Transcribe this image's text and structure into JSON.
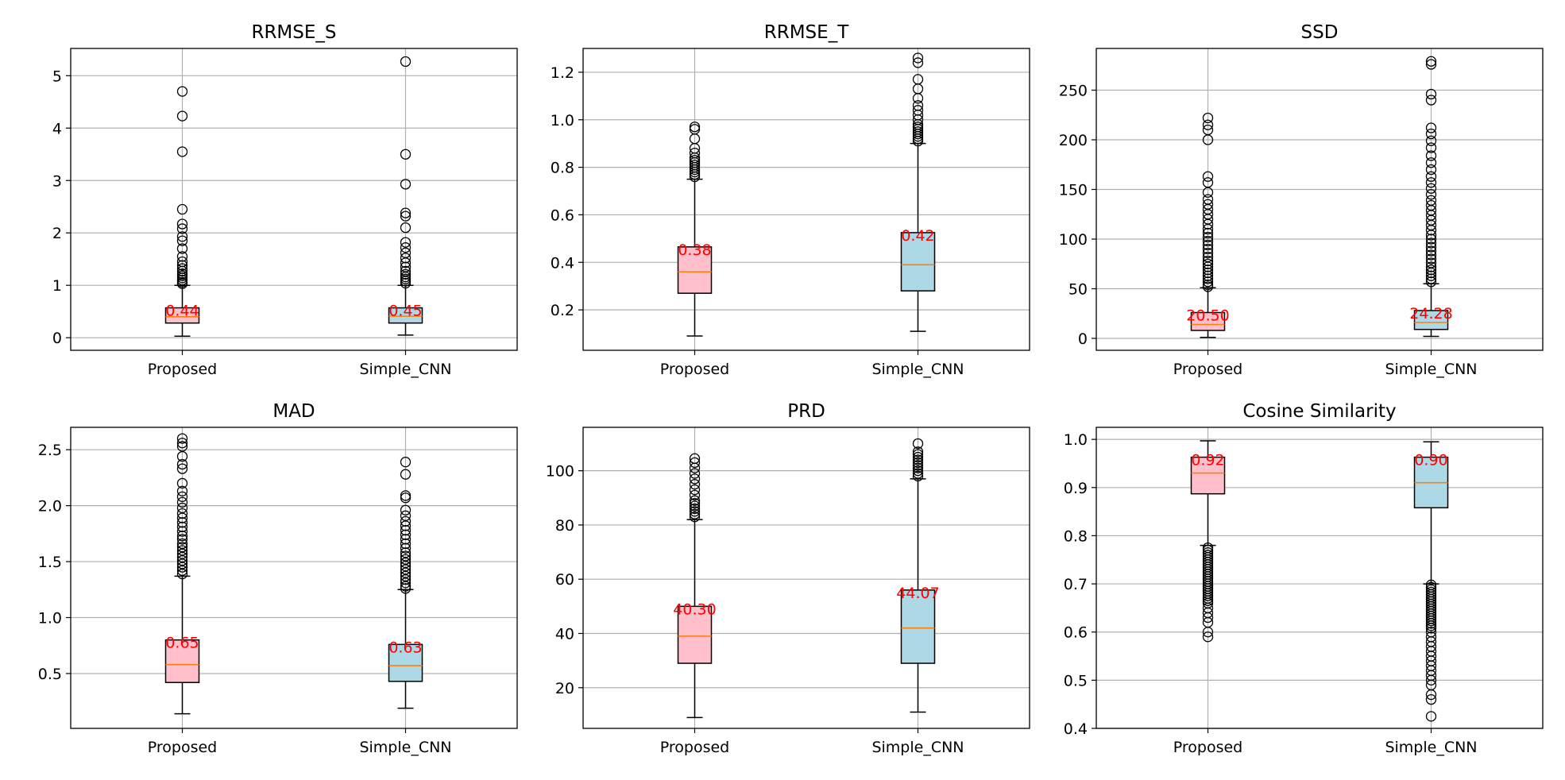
{
  "chart_data": [
    {
      "type": "box",
      "title": "RRMSE_S",
      "categories": [
        "Proposed",
        "Simple_CNN"
      ],
      "ylim": [
        -0.24,
        5.52
      ],
      "yticks": [
        0,
        1,
        2,
        3,
        4,
        5
      ],
      "ytick_labels": [
        "0",
        "1",
        "2",
        "3",
        "4",
        "5"
      ],
      "grid": true,
      "boxes": [
        {
          "name": "Proposed",
          "color": "#ffc0cb",
          "whislo": 0.03,
          "q1": 0.28,
          "med": 0.4,
          "q3": 0.57,
          "whishi": 1.0,
          "mean_label": "0.44",
          "fliers": [
            4.7,
            4.23,
            3.55,
            2.45,
            2.17,
            2.08,
            1.93,
            1.85,
            1.7,
            1.55,
            1.45,
            1.38,
            1.32,
            1.27,
            1.22,
            1.18,
            1.14,
            1.1,
            1.06,
            1.03
          ]
        },
        {
          "name": "Simple_CNN",
          "color": "#add8e6",
          "whislo": 0.05,
          "q1": 0.28,
          "med": 0.41,
          "q3": 0.57,
          "whishi": 1.0,
          "mean_label": "0.45",
          "fliers": [
            5.27,
            3.5,
            2.93,
            2.38,
            2.32,
            2.1,
            1.82,
            1.72,
            1.62,
            1.52,
            1.43,
            1.35,
            1.27,
            1.21,
            1.16,
            1.12,
            1.08,
            1.04
          ]
        }
      ]
    },
    {
      "type": "box",
      "title": "RRMSE_T",
      "categories": [
        "Proposed",
        "Simple_CNN"
      ],
      "ylim": [
        0.03,
        1.3
      ],
      "yticks": [
        0.2,
        0.4,
        0.6,
        0.8,
        1.0,
        1.2
      ],
      "ytick_labels": [
        "0.2",
        "0.4",
        "0.6",
        "0.8",
        "1.0",
        "1.2"
      ],
      "grid": true,
      "boxes": [
        {
          "name": "Proposed",
          "color": "#ffc0cb",
          "whislo": 0.09,
          "q1": 0.27,
          "med": 0.36,
          "q3": 0.465,
          "whishi": 0.75,
          "mean_label": "0.38",
          "fliers": [
            0.97,
            0.96,
            0.92,
            0.88,
            0.86,
            0.84,
            0.83,
            0.82,
            0.81,
            0.8,
            0.79,
            0.78,
            0.77,
            0.76
          ]
        },
        {
          "name": "Simple_CNN",
          "color": "#add8e6",
          "whislo": 0.11,
          "q1": 0.28,
          "med": 0.39,
          "q3": 0.525,
          "whishi": 0.9,
          "mean_label": "0.42",
          "fliers": [
            1.26,
            1.24,
            1.17,
            1.13,
            1.09,
            1.06,
            1.04,
            1.02,
            1.0,
            0.98,
            0.97,
            0.96,
            0.95,
            0.94,
            0.93,
            0.92,
            0.91
          ]
        }
      ]
    },
    {
      "type": "box",
      "title": "SSD",
      "categories": [
        "Proposed",
        "Simple_CNN"
      ],
      "ylim": [
        -12,
        292
      ],
      "yticks": [
        0,
        50,
        100,
        150,
        200,
        250
      ],
      "ytick_labels": [
        "0",
        "50",
        "100",
        "150",
        "200",
        "250"
      ],
      "grid": true,
      "boxes": [
        {
          "name": "Proposed",
          "color": "#ffc0cb",
          "whislo": 1,
          "q1": 8,
          "med": 14,
          "q3": 26,
          "whishi": 51,
          "mean_label": "20.50",
          "fliers": [
            222,
            215,
            210,
            200,
            163,
            157,
            147,
            140,
            135,
            130,
            125,
            120,
            115,
            110,
            106,
            102,
            98,
            94,
            90,
            86,
            82,
            78,
            75,
            72,
            69,
            66,
            63,
            60,
            57,
            54,
            52
          ]
        },
        {
          "name": "Simple_CNN",
          "color": "#add8e6",
          "whislo": 2,
          "q1": 9,
          "med": 16,
          "q3": 28,
          "whishi": 55,
          "mean_label": "24.28",
          "fliers": [
            279,
            276,
            246,
            240,
            212,
            206,
            199,
            192,
            184,
            177,
            170,
            163,
            157,
            151,
            145,
            139,
            134,
            129,
            124,
            119,
            114,
            109,
            104,
            100,
            96,
            92,
            88,
            84,
            80,
            76,
            72,
            69,
            66,
            63,
            60,
            57
          ]
        }
      ]
    },
    {
      "type": "box",
      "title": "MAD",
      "categories": [
        "Proposed",
        "Simple_CNN"
      ],
      "ylim": [
        0.01,
        2.7
      ],
      "yticks": [
        0.5,
        1.0,
        1.5,
        2.0,
        2.5
      ],
      "ytick_labels": [
        "0.5",
        "1.0",
        "1.5",
        "2.0",
        "2.5"
      ],
      "grid": true,
      "boxes": [
        {
          "name": "Proposed",
          "color": "#ffc0cb",
          "whislo": 0.14,
          "q1": 0.42,
          "med": 0.58,
          "q3": 0.8,
          "whishi": 1.37,
          "mean_label": "0.65",
          "fliers": [
            2.6,
            2.56,
            2.53,
            2.44,
            2.37,
            2.33,
            2.2,
            2.13,
            2.08,
            2.03,
            1.98,
            1.93,
            1.89,
            1.85,
            1.81,
            1.77,
            1.73,
            1.7,
            1.66,
            1.63,
            1.6,
            1.57,
            1.54,
            1.51,
            1.48,
            1.45,
            1.42,
            1.39
          ]
        },
        {
          "name": "Simple_CNN",
          "color": "#add8e6",
          "whislo": 0.19,
          "q1": 0.43,
          "med": 0.57,
          "q3": 0.76,
          "whishi": 1.25,
          "mean_label": "0.63",
          "fliers": [
            2.39,
            2.28,
            2.09,
            2.07,
            1.96,
            1.91,
            1.86,
            1.82,
            1.78,
            1.74,
            1.7,
            1.66,
            1.62,
            1.58,
            1.55,
            1.52,
            1.49,
            1.46,
            1.43,
            1.4,
            1.37,
            1.34,
            1.31,
            1.28,
            1.26
          ]
        }
      ]
    },
    {
      "type": "box",
      "title": "PRD",
      "categories": [
        "Proposed",
        "Simple_CNN"
      ],
      "ylim": [
        5,
        116
      ],
      "yticks": [
        20,
        40,
        60,
        80,
        100
      ],
      "ytick_labels": [
        "20",
        "40",
        "60",
        "80",
        "100"
      ],
      "grid": true,
      "boxes": [
        {
          "name": "Proposed",
          "color": "#ffc0cb",
          "whislo": 9,
          "q1": 29,
          "med": 39,
          "q3": 50,
          "whishi": 82,
          "mean_label": "40.30",
          "fliers": [
            104.5,
            103,
            101,
            99,
            97,
            95,
            93,
            91,
            89,
            88,
            87,
            86,
            85,
            84,
            83
          ]
        },
        {
          "name": "Simple_CNN",
          "color": "#add8e6",
          "whislo": 11,
          "q1": 29,
          "med": 42,
          "q3": 56,
          "whishi": 97,
          "mean_label": "44.07",
          "fliers": [
            110,
            107,
            106,
            105,
            104,
            103,
            102,
            101,
            100,
            99,
            98
          ]
        }
      ]
    },
    {
      "type": "box",
      "title": "Cosine Similarity",
      "categories": [
        "Proposed",
        "Simple_CNN"
      ],
      "ylim": [
        0.4,
        1.025
      ],
      "yticks": [
        0.4,
        0.5,
        0.6,
        0.7,
        0.8,
        0.9,
        1.0
      ],
      "ytick_labels": [
        "0.4",
        "0.5",
        "0.6",
        "0.7",
        "0.8",
        "0.9",
        "1.0"
      ],
      "grid": true,
      "boxes": [
        {
          "name": "Proposed",
          "color": "#ffc0cb",
          "whislo": 0.78,
          "q1": 0.887,
          "med": 0.93,
          "q3": 0.963,
          "whishi": 0.997,
          "mean_label": "0.92",
          "fliers": [
            0.775,
            0.77,
            0.765,
            0.76,
            0.755,
            0.75,
            0.745,
            0.74,
            0.735,
            0.73,
            0.725,
            0.72,
            0.715,
            0.71,
            0.705,
            0.7,
            0.695,
            0.69,
            0.685,
            0.68,
            0.675,
            0.67,
            0.665,
            0.66,
            0.65,
            0.64,
            0.63,
            0.62,
            0.6,
            0.59
          ]
        },
        {
          "name": "Simple_CNN",
          "color": "#add8e6",
          "whislo": 0.7,
          "q1": 0.858,
          "med": 0.91,
          "q3": 0.963,
          "whishi": 0.995,
          "mean_label": "0.90",
          "fliers": [
            0.698,
            0.693,
            0.688,
            0.683,
            0.678,
            0.673,
            0.668,
            0.663,
            0.658,
            0.653,
            0.648,
            0.643,
            0.638,
            0.633,
            0.628,
            0.623,
            0.618,
            0.613,
            0.608,
            0.6,
            0.59,
            0.58,
            0.57,
            0.56,
            0.55,
            0.54,
            0.53,
            0.52,
            0.51,
            0.5,
            0.49,
            0.47,
            0.46,
            0.425
          ]
        }
      ]
    }
  ]
}
